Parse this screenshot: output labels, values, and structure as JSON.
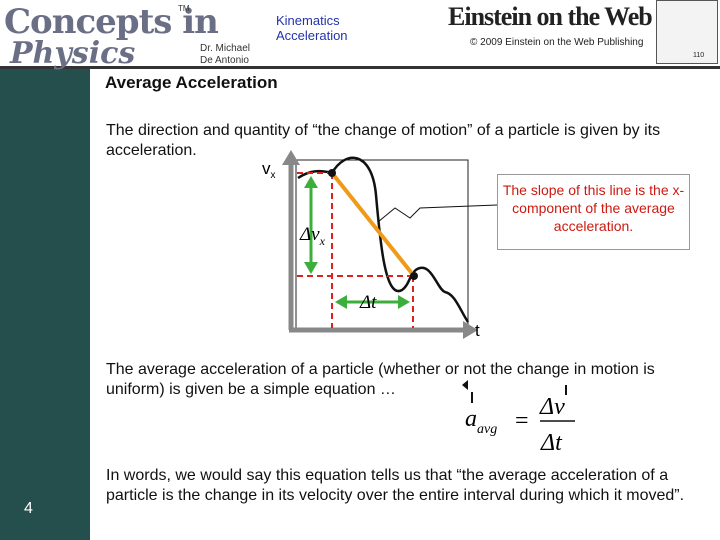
{
  "header": {
    "logo_line1": "Concepts in",
    "logo_line2": "Physics",
    "trademark": "TM",
    "author_line1": "Dr. Michael",
    "author_line2": "De Antonio",
    "topic_line1": "Kinematics",
    "topic_line2": "Acceleration",
    "publisher_logo": "Einstein on the Web",
    "copyright": "© 2009 Einstein on the Web Publishing",
    "page_code": "110"
  },
  "slide": {
    "title": "Average Acceleration",
    "paragraph1": "The direction and quantity of “the change of motion” of a particle is given by its acceleration.",
    "graph": {
      "y_axis_label": "v",
      "y_axis_subscript": "x",
      "x_axis_label": "t",
      "delta_v_label": "Δv",
      "delta_v_subscript": "x",
      "delta_t_label": "Δt",
      "callout": "The slope of this line is the  x-component of the average acceleration."
    },
    "paragraph2": "The average acceleration of a particle (whether or not the change in motion is uniform) is given be a simple equation …",
    "equation": {
      "lhs": "a",
      "lhs_subscript": "avg",
      "equals": "=",
      "numerator": "Δv",
      "denominator": "Δt"
    },
    "paragraph3": "In words, we would say this equation tells us that “the average acceleration of a particle is the change in its velocity over the entire interval during which it moved”.",
    "slide_number": "4"
  }
}
